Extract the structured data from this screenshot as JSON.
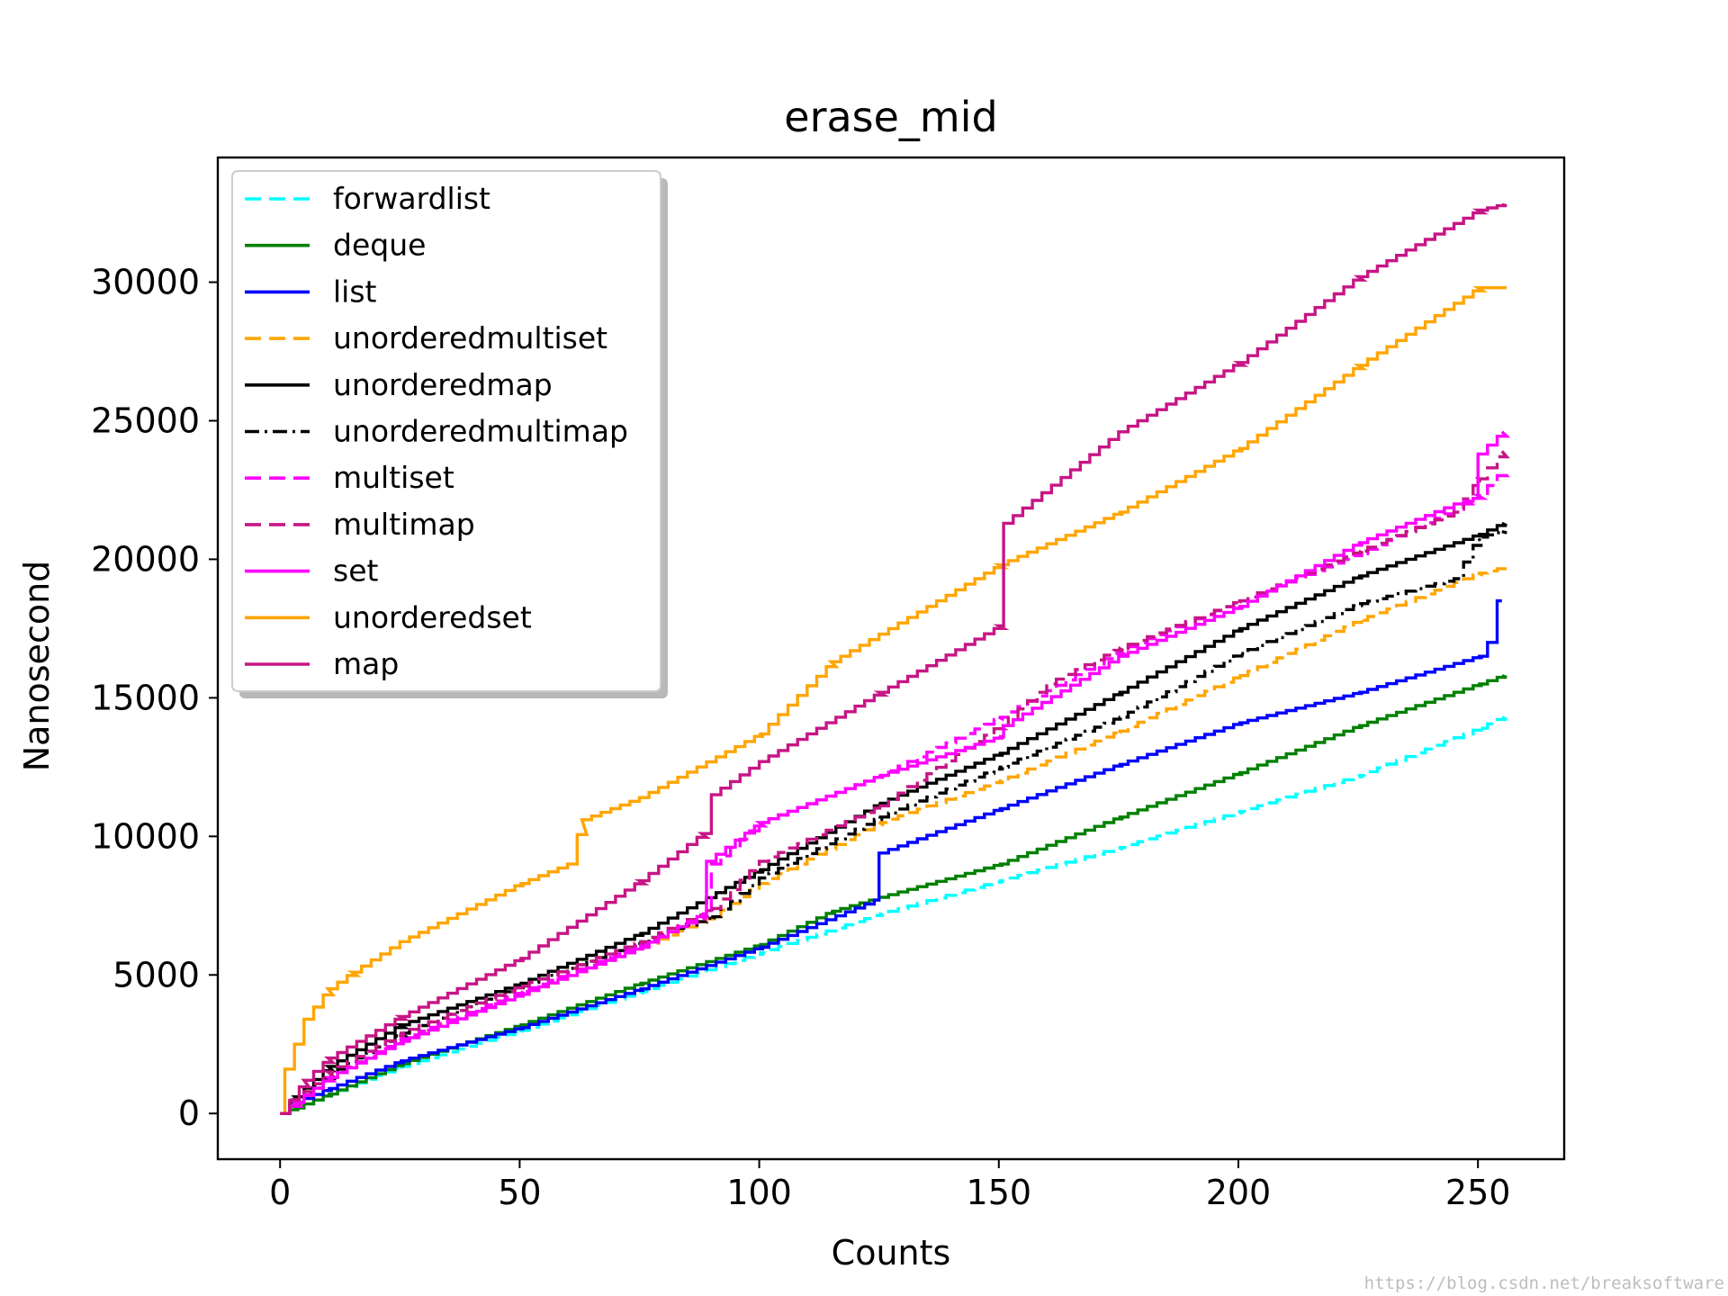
{
  "chart_data": {
    "type": "line",
    "title": "erase_mid",
    "xlabel": "Counts",
    "ylabel": "Nanosecond",
    "xlim": [
      -13,
      268
    ],
    "ylim": [
      -1650,
      34500
    ],
    "xticks": [
      0,
      50,
      100,
      150,
      200,
      250
    ],
    "yticks": [
      0,
      5000,
      10000,
      15000,
      20000,
      25000,
      30000
    ],
    "xtick_labels": [
      "0",
      "50",
      "100",
      "150",
      "200",
      "250"
    ],
    "ytick_labels": [
      "0",
      "5000",
      "10000",
      "15000",
      "20000",
      "25000",
      "30000"
    ],
    "grid": false,
    "legend_position": "upper-left",
    "series": [
      {
        "name": "forwardlist",
        "color": "#00ffff",
        "dash": "dashed",
        "points": [
          [
            0,
            0
          ],
          [
            3,
            200
          ],
          [
            10,
            700
          ],
          [
            25,
            1700
          ],
          [
            50,
            3000
          ],
          [
            75,
            4400
          ],
          [
            100,
            5800
          ],
          [
            125,
            7200
          ],
          [
            150,
            8400
          ],
          [
            175,
            9600
          ],
          [
            200,
            10900
          ],
          [
            225,
            12200
          ],
          [
            250,
            13900
          ],
          [
            255,
            14300
          ]
        ]
      },
      {
        "name": "deque",
        "color": "#008000",
        "dash": "solid",
        "points": [
          [
            0,
            0
          ],
          [
            3,
            200
          ],
          [
            10,
            700
          ],
          [
            25,
            1800
          ],
          [
            50,
            3200
          ],
          [
            75,
            4700
          ],
          [
            100,
            6100
          ],
          [
            115,
            7300
          ],
          [
            125,
            7800
          ],
          [
            150,
            9000
          ],
          [
            175,
            10700
          ],
          [
            200,
            12300
          ],
          [
            225,
            14000
          ],
          [
            250,
            15500
          ],
          [
            255,
            15800
          ]
        ]
      },
      {
        "name": "list",
        "color": "#0000ff",
        "dash": "solid",
        "points": [
          [
            0,
            0
          ],
          [
            3,
            400
          ],
          [
            10,
            900
          ],
          [
            25,
            1900
          ],
          [
            50,
            3100
          ],
          [
            75,
            4500
          ],
          [
            100,
            6000
          ],
          [
            124,
            7700
          ],
          [
            125,
            9400
          ],
          [
            150,
            11000
          ],
          [
            175,
            12600
          ],
          [
            200,
            14100
          ],
          [
            225,
            15200
          ],
          [
            250,
            16500
          ],
          [
            252,
            17000
          ],
          [
            253,
            17000
          ],
          [
            254,
            18500
          ],
          [
            255,
            18500
          ]
        ]
      },
      {
        "name": "unorderedmultiset",
        "color": "#ffa500",
        "dash": "dashed",
        "points": [
          [
            0,
            0
          ],
          [
            3,
            400
          ],
          [
            10,
            1300
          ],
          [
            25,
            2700
          ],
          [
            50,
            4300
          ],
          [
            75,
            6000
          ],
          [
            90,
            7100
          ],
          [
            100,
            8300
          ],
          [
            125,
            10500
          ],
          [
            150,
            12000
          ],
          [
            175,
            13800
          ],
          [
            200,
            15800
          ],
          [
            225,
            17800
          ],
          [
            250,
            19500
          ],
          [
            255,
            19700
          ]
        ]
      },
      {
        "name": "unorderedmap",
        "color": "#000000",
        "dash": "solid",
        "points": [
          [
            0,
            0
          ],
          [
            3,
            600
          ],
          [
            10,
            1700
          ],
          [
            25,
            3200
          ],
          [
            50,
            4700
          ],
          [
            75,
            6500
          ],
          [
            100,
            8800
          ],
          [
            125,
            11200
          ],
          [
            150,
            13000
          ],
          [
            175,
            15200
          ],
          [
            200,
            17500
          ],
          [
            225,
            19400
          ],
          [
            250,
            20900
          ],
          [
            255,
            21300
          ]
        ]
      },
      {
        "name": "unorderedmultimap",
        "color": "#000000",
        "dash": "dashdot",
        "points": [
          [
            0,
            0
          ],
          [
            3,
            400
          ],
          [
            10,
            1400
          ],
          [
            25,
            2900
          ],
          [
            50,
            4600
          ],
          [
            75,
            6200
          ],
          [
            90,
            7100
          ],
          [
            100,
            8500
          ],
          [
            125,
            10700
          ],
          [
            150,
            12500
          ],
          [
            175,
            14300
          ],
          [
            200,
            16600
          ],
          [
            225,
            18400
          ],
          [
            245,
            19300
          ],
          [
            250,
            20800
          ],
          [
            255,
            21000
          ]
        ]
      },
      {
        "name": "multiset",
        "color": "#ff00ff",
        "dash": "dashed",
        "points": [
          [
            0,
            0
          ],
          [
            3,
            400
          ],
          [
            10,
            1300
          ],
          [
            25,
            2700
          ],
          [
            50,
            4400
          ],
          [
            75,
            6100
          ],
          [
            88,
            7100
          ],
          [
            90,
            9000
          ],
          [
            100,
            10500
          ],
          [
            125,
            12200
          ],
          [
            150,
            14300
          ],
          [
            175,
            16700
          ],
          [
            200,
            18500
          ],
          [
            225,
            20200
          ],
          [
            245,
            21800
          ],
          [
            250,
            22300
          ],
          [
            255,
            23200
          ]
        ]
      },
      {
        "name": "multimap",
        "color": "#c71585",
        "dash": "dashed",
        "points": [
          [
            0,
            0
          ],
          [
            3,
            500
          ],
          [
            10,
            1500
          ],
          [
            25,
            2900
          ],
          [
            50,
            4600
          ],
          [
            75,
            6200
          ],
          [
            90,
            7400
          ],
          [
            100,
            9100
          ],
          [
            125,
            11100
          ],
          [
            150,
            14000
          ],
          [
            160,
            15500
          ],
          [
            175,
            16800
          ],
          [
            200,
            18500
          ],
          [
            225,
            20300
          ],
          [
            245,
            21700
          ],
          [
            250,
            22900
          ],
          [
            255,
            23900
          ]
        ]
      },
      {
        "name": "set",
        "color": "#ff00ff",
        "dash": "solid",
        "points": [
          [
            0,
            0
          ],
          [
            3,
            400
          ],
          [
            10,
            1300
          ],
          [
            25,
            2600
          ],
          [
            50,
            4300
          ],
          [
            75,
            6000
          ],
          [
            88,
            7200
          ],
          [
            89,
            9100
          ],
          [
            100,
            10500
          ],
          [
            125,
            12200
          ],
          [
            150,
            13600
          ],
          [
            151,
            14000
          ],
          [
            175,
            16500
          ],
          [
            200,
            18300
          ],
          [
            225,
            20600
          ],
          [
            245,
            22000
          ],
          [
            249,
            22200
          ],
          [
            250,
            23800
          ],
          [
            255,
            24600
          ]
        ]
      },
      {
        "name": "unorderedset",
        "color": "#ffa500",
        "dash": "solid",
        "points": [
          [
            0,
            0
          ],
          [
            1,
            1600
          ],
          [
            5,
            3400
          ],
          [
            10,
            4500
          ],
          [
            15,
            5100
          ],
          [
            25,
            6200
          ],
          [
            50,
            8300
          ],
          [
            60,
            9000
          ],
          [
            63,
            10600
          ],
          [
            75,
            11400
          ],
          [
            100,
            13700
          ],
          [
            115,
            16300
          ],
          [
            125,
            17300
          ],
          [
            150,
            19800
          ],
          [
            175,
            21700
          ],
          [
            200,
            24000
          ],
          [
            225,
            27000
          ],
          [
            250,
            29800
          ],
          [
            255,
            29800
          ]
        ]
      },
      {
        "name": "map",
        "color": "#c71585",
        "dash": "solid",
        "points": [
          [
            0,
            0
          ],
          [
            5,
            1200
          ],
          [
            10,
            2000
          ],
          [
            25,
            3500
          ],
          [
            50,
            5600
          ],
          [
            75,
            8400
          ],
          [
            88,
            10100
          ],
          [
            90,
            11500
          ],
          [
            100,
            12700
          ],
          [
            125,
            15200
          ],
          [
            150,
            17600
          ],
          [
            151,
            21300
          ],
          [
            175,
            24600
          ],
          [
            200,
            27100
          ],
          [
            225,
            30200
          ],
          [
            250,
            32600
          ],
          [
            255,
            32800
          ]
        ]
      }
    ]
  },
  "watermark": "https://blog.csdn.net/breaksoftware"
}
